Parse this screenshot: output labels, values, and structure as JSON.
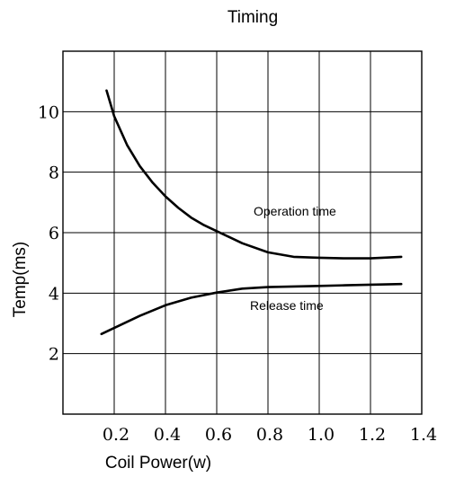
{
  "chart_data": {
    "type": "line",
    "title": "Timing",
    "xlabel": "Coil Power(w)",
    "ylabel": "Temp(ms)",
    "xlim": [
      0.0,
      1.4
    ],
    "ylim": [
      0,
      12
    ],
    "xticks": [
      "0.2",
      "0.4",
      "0.6",
      "0.8",
      "1.0",
      "1.2",
      "1.4"
    ],
    "yticks": [
      "2",
      "4",
      "6",
      "8",
      "10"
    ],
    "grid": true,
    "series": [
      {
        "name": "Operation time",
        "x": [
          0.17,
          0.2,
          0.25,
          0.3,
          0.35,
          0.4,
          0.45,
          0.5,
          0.55,
          0.6,
          0.7,
          0.8,
          0.9,
          1.0,
          1.1,
          1.2,
          1.32
        ],
        "y": [
          10.7,
          9.85,
          8.9,
          8.2,
          7.65,
          7.2,
          6.82,
          6.5,
          6.25,
          6.05,
          5.65,
          5.35,
          5.2,
          5.17,
          5.15,
          5.15,
          5.2
        ]
      },
      {
        "name": "Release time",
        "x": [
          0.15,
          0.2,
          0.3,
          0.4,
          0.5,
          0.6,
          0.7,
          0.8,
          0.9,
          1.0,
          1.1,
          1.2,
          1.32
        ],
        "y": [
          2.65,
          2.85,
          3.25,
          3.6,
          3.85,
          4.02,
          4.15,
          4.2,
          4.22,
          4.24,
          4.26,
          4.28,
          4.3
        ]
      }
    ]
  }
}
